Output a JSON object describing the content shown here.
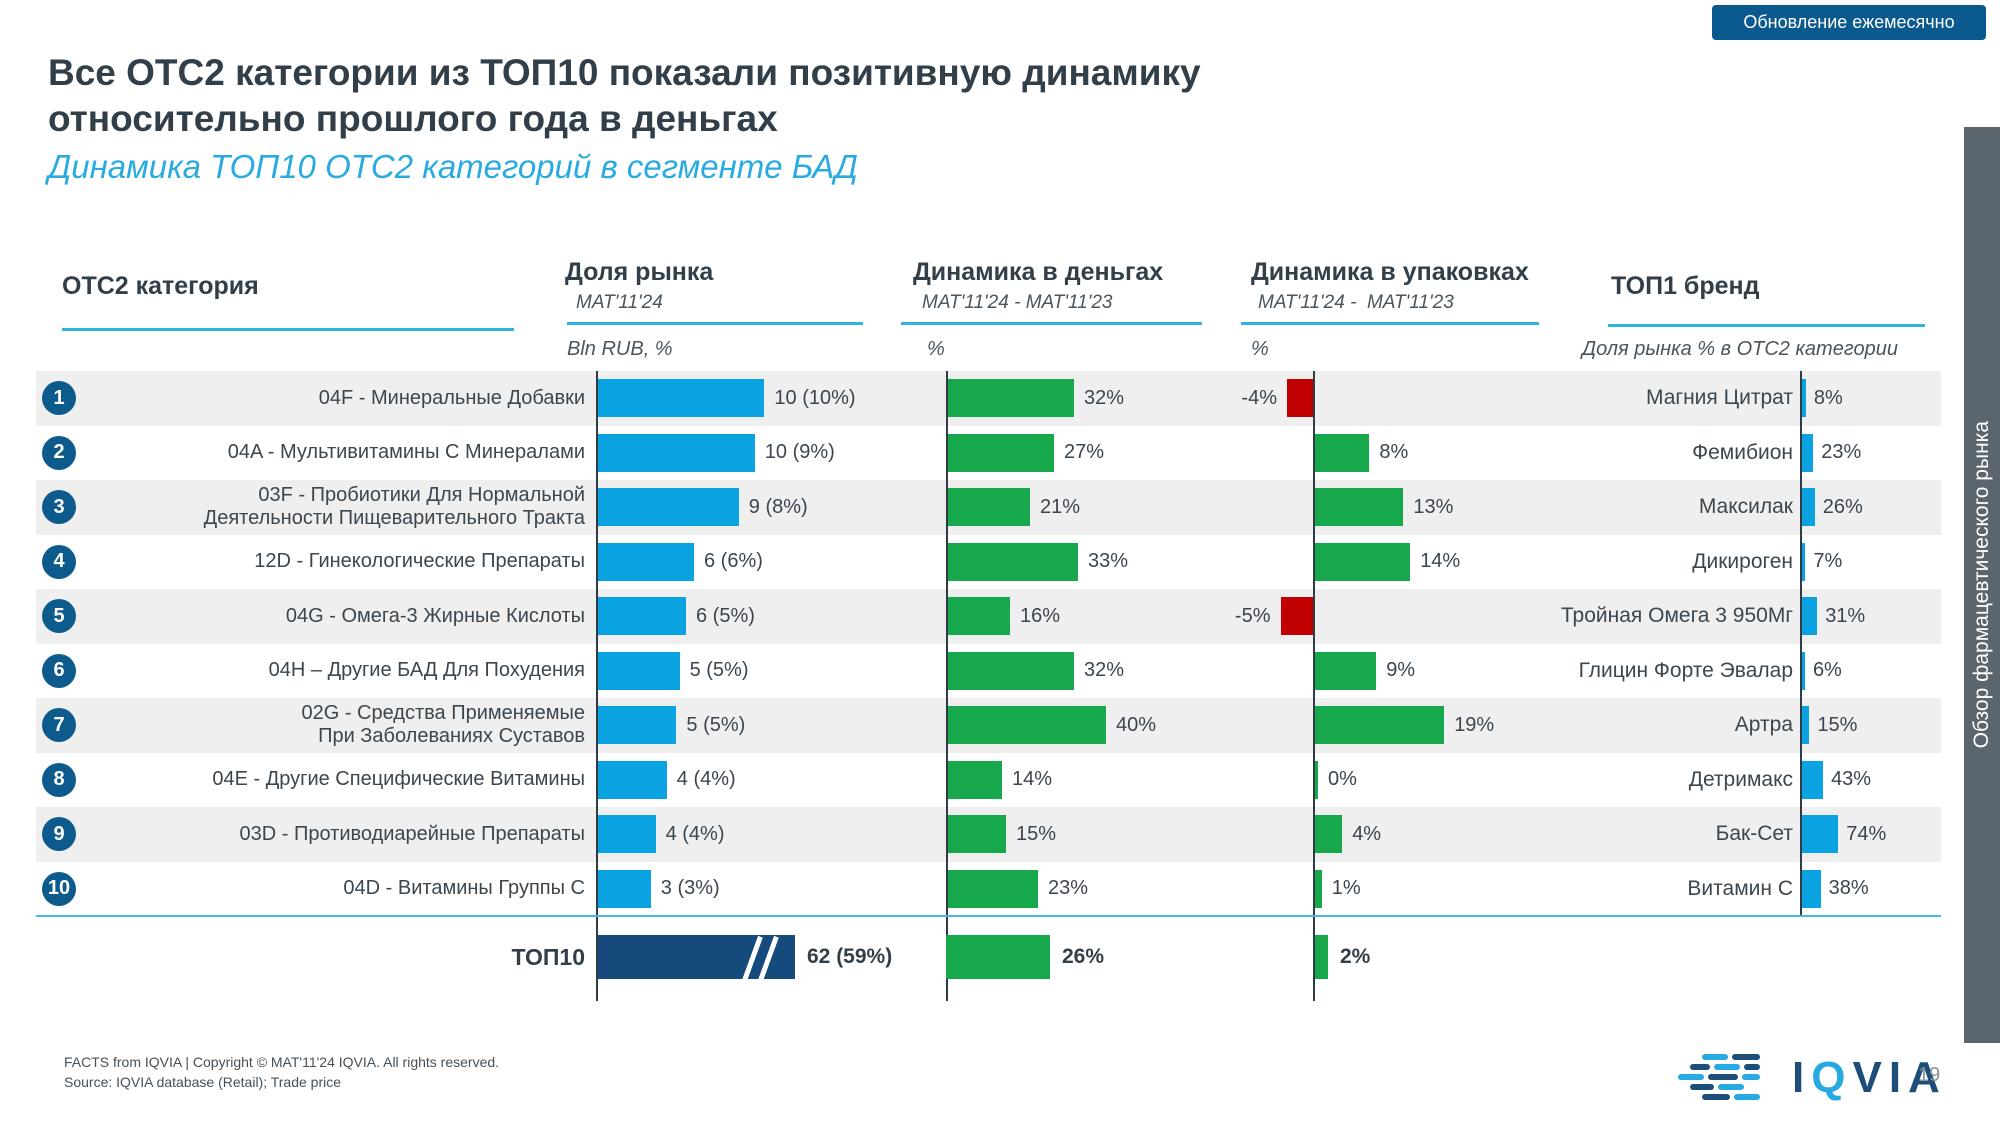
{
  "badge": {
    "label": "Обновление ежемесячно"
  },
  "title": {
    "line1": "Все ОТС2 категории из ТОП10 показали позитивную динамику",
    "line2": "относительно прошлого года в деньгах"
  },
  "subtitle": "Динамика ТОП10 ОТС2 категорий в сегменте БАД",
  "sidebar": {
    "label": "Обзор фармацевтического рынка"
  },
  "columns": {
    "category": {
      "title": "ОТС2 категория"
    },
    "share": {
      "title": "Доля рынка",
      "period": "MAT'11'24",
      "unit": "Bln RUB, %"
    },
    "money": {
      "title": "Динамика в деньгах",
      "period": "MAT'11'24 - MAT'11'23",
      "unit": "%"
    },
    "packs": {
      "title": "Динамика в упаковках",
      "period": "MAT'11'24 -  MAT'11'23",
      "unit": "%"
    },
    "brand": {
      "title": "ТОП1 бренд",
      "subtitle": "Доля рынка % в ОТС2 категории"
    }
  },
  "chart_data": {
    "type": "bar",
    "description": "TOP10 OTC2 categories in dietary supplements segment: market share (Bln RUB, %), value growth %, unit growth %, top brand share %",
    "rows": [
      {
        "rank": 1,
        "category": [
          "04F - Минеральные Добавки"
        ],
        "share_label": "10 (10%)",
        "share_bln": 10.4,
        "money_pct": 32,
        "packs_pct": -4,
        "brand": "Магния Цитрат",
        "brand_pct": 8
      },
      {
        "rank": 2,
        "category": [
          "04A - Мультивитамины С Минералами"
        ],
        "share_label": "10 (9%)",
        "share_bln": 9.8,
        "money_pct": 27,
        "packs_pct": 8,
        "brand": "Фемибион",
        "brand_pct": 23
      },
      {
        "rank": 3,
        "category": [
          "03F - Пробиотики Для Нормальной",
          "Деятельности Пищеварительного Тракта"
        ],
        "share_label": "9 (8%)",
        "share_bln": 8.8,
        "money_pct": 21,
        "packs_pct": 13,
        "brand": "Максилак",
        "brand_pct": 26
      },
      {
        "rank": 4,
        "category": [
          "12D - Гинекологические Препараты"
        ],
        "share_label": "6 (6%)",
        "share_bln": 6.0,
        "money_pct": 33,
        "packs_pct": 14,
        "brand": "Дикироген",
        "brand_pct": 7
      },
      {
        "rank": 5,
        "category": [
          "04G - Омега-3 Жирные Кислоты"
        ],
        "share_label": "6 (5%)",
        "share_bln": 5.5,
        "money_pct": 16,
        "packs_pct": -5,
        "brand": "Тройная Омега 3 950Мг",
        "brand_pct": 31
      },
      {
        "rank": 6,
        "category": [
          "04H – Другие БАД Для Похудения"
        ],
        "share_label": "5 (5%)",
        "share_bln": 5.1,
        "money_pct": 32,
        "packs_pct": 9,
        "brand": "Глицин Форте Эвалар",
        "brand_pct": 6
      },
      {
        "rank": 7,
        "category": [
          "02G - Средства Применяемые",
          "При Заболеваниях Суставов"
        ],
        "share_label": "5 (5%)",
        "share_bln": 4.9,
        "money_pct": 40,
        "packs_pct": 19,
        "brand": "Артра",
        "brand_pct": 15
      },
      {
        "rank": 8,
        "category": [
          "04E - Другие Специфические Витамины"
        ],
        "share_label": "4 (4%)",
        "share_bln": 4.3,
        "money_pct": 14,
        "packs_pct": 0,
        "brand": "Детримакс",
        "brand_pct": 43
      },
      {
        "rank": 9,
        "category": [
          "03D - Противодиарейные Препараты"
        ],
        "share_label": "4 (4%)",
        "share_bln": 3.6,
        "money_pct": 15,
        "packs_pct": 4,
        "brand": "Бак-Сет",
        "brand_pct": 74
      },
      {
        "rank": 10,
        "category": [
          "04D - Витамины Группы С"
        ],
        "share_label": "3 (3%)",
        "share_bln": 3.3,
        "money_pct": 23,
        "packs_pct": 1,
        "brand": "Витамин С",
        "brand_pct": 38
      }
    ],
    "total": {
      "label": "ТОП10",
      "share_label": "62 (59%)",
      "share_bln": 62,
      "money_label": "26%",
      "money_pct": 26,
      "packs_label": "2%",
      "packs_pct": 2
    }
  },
  "footer": {
    "line1": "FACTS from IQVIA | Copyright © MAT'11'24 IQVIA. All rights reserved.",
    "line2": "Source: IQVIA database (Retail); Trade price",
    "page": "19",
    "logo": {
      "i1": "I",
      "q": "Q",
      "via": "VIA"
    }
  },
  "colors": {
    "bar_blue": "#0aa2e0",
    "bar_green": "#17a84b",
    "bar_red": "#c00000",
    "bar_navy": "#164a7c",
    "row_band": "#efefef",
    "accent_blue": "#29abe2",
    "circle_blue": "#0d5a8c",
    "badge_blue": "#0a5a90",
    "strip_gray": "#5b656e"
  }
}
